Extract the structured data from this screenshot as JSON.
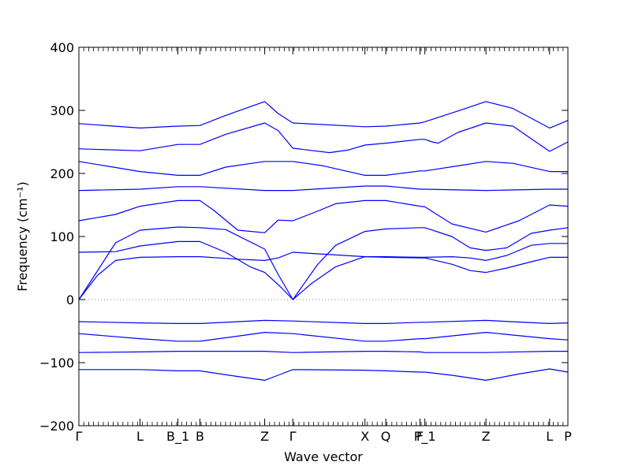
{
  "chart_data": {
    "type": "line",
    "title": "",
    "xlabel": "Wave vector",
    "ylabel": "Frequency (cm⁻¹)",
    "ylim": [
      -200,
      400
    ],
    "y_ticks": [
      -200,
      -100,
      0,
      100,
      200,
      300,
      400
    ],
    "y_tick_labels": [
      "−200",
      "−100",
      "0",
      "100",
      "200",
      "300",
      "400"
    ],
    "grid": false,
    "legend": "none",
    "line_color": "#0000ff",
    "zero_line_color": "#808080",
    "x_path_range": [
      0,
      40
    ],
    "high_symmetry_points": [
      {
        "label": "Γ",
        "x": 0
      },
      {
        "label": "L",
        "x": 5
      },
      {
        "label": "B_1",
        "x": 8.1
      },
      {
        "label": "B",
        "x": 9.9
      },
      {
        "label": "Z",
        "x": 15.2
      },
      {
        "label": "Γ",
        "x": 17.5
      },
      {
        "label": "X",
        "x": 23.4
      },
      {
        "label": "Q",
        "x": 25.1
      },
      {
        "label": "F",
        "x": 27.9
      },
      {
        "label": "P_1",
        "x": 28.3
      },
      {
        "label": "Z",
        "x": 33.3
      },
      {
        "label": "L",
        "x": 38.5
      },
      {
        "label": "P",
        "x": 40
      }
    ],
    "series": [
      {
        "points": [
          [
            0,
            -111
          ],
          [
            5,
            -111
          ],
          [
            8.1,
            -113
          ],
          [
            9.9,
            -113
          ],
          [
            13,
            -122
          ],
          [
            15.2,
            -128
          ],
          [
            16.3,
            -120
          ],
          [
            17.5,
            -111
          ],
          [
            23.4,
            -112
          ],
          [
            25.1,
            -113
          ],
          [
            27.9,
            -115
          ],
          [
            28.3,
            -115
          ],
          [
            30.5,
            -120
          ],
          [
            33.3,
            -128
          ],
          [
            36,
            -118
          ],
          [
            38.5,
            -110
          ],
          [
            40,
            -115
          ]
        ]
      },
      {
        "points": [
          [
            0,
            -84
          ],
          [
            5,
            -83
          ],
          [
            8.1,
            -82
          ],
          [
            9.9,
            -82
          ],
          [
            15.2,
            -82
          ],
          [
            17.5,
            -84
          ],
          [
            23.4,
            -82
          ],
          [
            25.1,
            -82
          ],
          [
            27.9,
            -83
          ],
          [
            28.3,
            -84
          ],
          [
            33.3,
            -84
          ],
          [
            38.5,
            -82
          ],
          [
            40,
            -82
          ]
        ]
      },
      {
        "points": [
          [
            0,
            -54
          ],
          [
            5,
            -62
          ],
          [
            8.1,
            -66
          ],
          [
            9.9,
            -66
          ],
          [
            13,
            -58
          ],
          [
            15.2,
            -52
          ],
          [
            17.5,
            -54
          ],
          [
            23.4,
            -66
          ],
          [
            25.1,
            -66
          ],
          [
            27.9,
            -62
          ],
          [
            28.3,
            -62
          ],
          [
            33.3,
            -52
          ],
          [
            38.5,
            -62
          ],
          [
            40,
            -64
          ]
        ]
      },
      {
        "points": [
          [
            0,
            -35
          ],
          [
            5,
            -37
          ],
          [
            8.1,
            -38
          ],
          [
            9.9,
            -38
          ],
          [
            15.2,
            -33
          ],
          [
            17.5,
            -34
          ],
          [
            23.4,
            -38
          ],
          [
            25.1,
            -38
          ],
          [
            27.9,
            -36
          ],
          [
            28.3,
            -36
          ],
          [
            33.3,
            -33
          ],
          [
            38.5,
            -38
          ],
          [
            40,
            -37
          ]
        ]
      },
      {
        "points": [
          [
            0,
            0
          ],
          [
            1.5,
            38
          ],
          [
            3,
            62
          ],
          [
            5,
            67
          ],
          [
            8.1,
            68
          ],
          [
            9.9,
            68
          ],
          [
            13,
            64
          ],
          [
            15.2,
            62
          ],
          [
            16.3,
            66
          ],
          [
            17.5,
            75
          ],
          [
            23.4,
            68
          ],
          [
            25.1,
            67
          ],
          [
            27.9,
            66
          ],
          [
            28.3,
            66
          ],
          [
            30.5,
            56
          ],
          [
            32,
            46
          ],
          [
            33.3,
            43
          ],
          [
            35,
            50
          ],
          [
            37,
            60
          ],
          [
            38.5,
            67
          ],
          [
            40,
            67
          ]
        ]
      },
      {
        "points": [
          [
            0,
            75
          ],
          [
            3,
            76
          ],
          [
            5,
            85
          ],
          [
            8.1,
            92
          ],
          [
            9.9,
            92
          ],
          [
            12,
            75
          ],
          [
            14,
            52
          ],
          [
            15.2,
            43
          ],
          [
            16.5,
            20
          ],
          [
            17.5,
            0
          ],
          [
            19,
            25
          ],
          [
            21,
            52
          ],
          [
            23.4,
            68
          ],
          [
            25.1,
            68
          ],
          [
            27.9,
            67
          ],
          [
            28.3,
            67
          ],
          [
            30.5,
            68
          ],
          [
            32,
            66
          ],
          [
            33.3,
            62
          ],
          [
            35,
            70
          ],
          [
            37,
            86
          ],
          [
            38.5,
            89
          ],
          [
            40,
            89
          ]
        ]
      },
      {
        "points": [
          [
            0,
            0
          ],
          [
            1.5,
            45
          ],
          [
            3,
            90
          ],
          [
            5,
            110
          ],
          [
            8.1,
            115
          ],
          [
            9.9,
            114
          ],
          [
            12,
            111
          ],
          [
            15.2,
            80
          ],
          [
            16.3,
            40
          ],
          [
            17.5,
            0
          ],
          [
            19.5,
            55
          ],
          [
            21,
            86
          ],
          [
            23.4,
            108
          ],
          [
            25.1,
            112
          ],
          [
            27.9,
            114
          ],
          [
            28.3,
            114
          ],
          [
            30.5,
            100
          ],
          [
            32,
            82
          ],
          [
            33.3,
            78
          ],
          [
            35,
            82
          ],
          [
            37,
            105
          ],
          [
            38.5,
            110
          ],
          [
            40,
            114
          ]
        ]
      },
      {
        "points": [
          [
            0,
            125
          ],
          [
            3,
            135
          ],
          [
            5,
            148
          ],
          [
            8.1,
            157
          ],
          [
            9.9,
            157
          ],
          [
            11,
            142
          ],
          [
            13,
            110
          ],
          [
            15.2,
            106
          ],
          [
            16.3,
            126
          ],
          [
            17.5,
            125
          ],
          [
            19.5,
            140
          ],
          [
            21,
            152
          ],
          [
            23.4,
            157
          ],
          [
            25.1,
            157
          ],
          [
            27.9,
            148
          ],
          [
            28.3,
            147
          ],
          [
            30.5,
            120
          ],
          [
            33.3,
            107
          ],
          [
            36,
            125
          ],
          [
            38.5,
            150
          ],
          [
            40,
            148
          ]
        ]
      },
      {
        "points": [
          [
            0,
            173
          ],
          [
            5,
            175
          ],
          [
            8.1,
            179
          ],
          [
            9.9,
            179
          ],
          [
            15.2,
            173
          ],
          [
            17.5,
            173
          ],
          [
            23.4,
            180
          ],
          [
            25.1,
            180
          ],
          [
            27.9,
            175
          ],
          [
            28.3,
            175
          ],
          [
            33.3,
            173
          ],
          [
            38.5,
            175
          ],
          [
            40,
            175
          ]
        ]
      },
      {
        "points": [
          [
            0,
            219
          ],
          [
            5,
            203
          ],
          [
            8.1,
            197
          ],
          [
            9.9,
            197
          ],
          [
            12,
            210
          ],
          [
            15.2,
            219
          ],
          [
            17.5,
            219
          ],
          [
            20,
            212
          ],
          [
            23.4,
            197
          ],
          [
            25.1,
            197
          ],
          [
            27.9,
            204
          ],
          [
            28.3,
            204
          ],
          [
            31,
            212
          ],
          [
            33.3,
            219
          ],
          [
            35.5,
            216
          ],
          [
            38.5,
            203
          ],
          [
            40,
            203
          ]
        ]
      },
      {
        "points": [
          [
            0,
            239
          ],
          [
            5,
            236
          ],
          [
            8.1,
            246
          ],
          [
            9.9,
            246
          ],
          [
            12,
            262
          ],
          [
            15.2,
            280
          ],
          [
            16.3,
            268
          ],
          [
            17.5,
            240
          ],
          [
            20.5,
            233
          ],
          [
            22,
            237
          ],
          [
            23.4,
            245
          ],
          [
            25.1,
            248
          ],
          [
            27.9,
            254
          ],
          [
            28.3,
            254
          ],
          [
            28.9,
            250
          ],
          [
            29.4,
            248
          ],
          [
            31,
            265
          ],
          [
            33.3,
            280
          ],
          [
            35.5,
            275
          ],
          [
            38.5,
            235
          ],
          [
            40,
            250
          ]
        ]
      },
      {
        "points": [
          [
            0,
            279
          ],
          [
            5,
            272
          ],
          [
            8.1,
            275
          ],
          [
            9.9,
            276
          ],
          [
            12,
            292
          ],
          [
            15.2,
            314
          ],
          [
            16.3,
            295
          ],
          [
            17.5,
            280
          ],
          [
            23.4,
            274
          ],
          [
            25.1,
            275
          ],
          [
            27.9,
            280
          ],
          [
            28.3,
            282
          ],
          [
            31,
            299
          ],
          [
            33.3,
            314
          ],
          [
            35.5,
            303
          ],
          [
            38.5,
            272
          ],
          [
            40,
            284
          ]
        ]
      }
    ]
  }
}
